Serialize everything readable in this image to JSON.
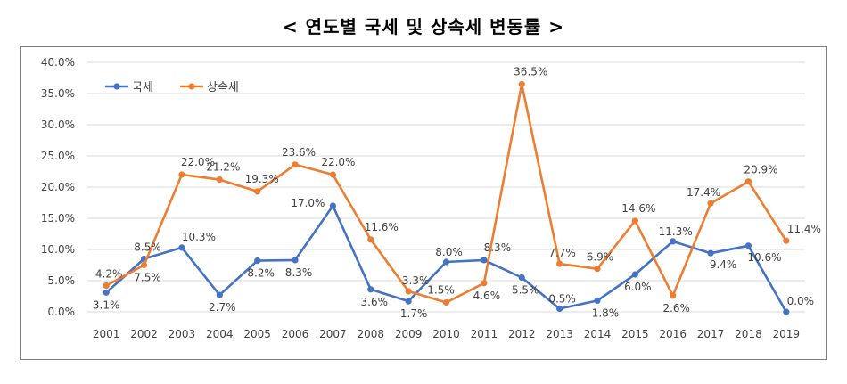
{
  "chart_data": {
    "type": "line",
    "title": "< 연도별 국세 및 상속세 변동률 >",
    "x": [
      "2001",
      "2002",
      "2003",
      "2004",
      "2005",
      "2006",
      "2007",
      "2008",
      "2009",
      "2010",
      "2011",
      "2012",
      "2013",
      "2014",
      "2015",
      "2016",
      "2017",
      "2018",
      "2019"
    ],
    "ylim": [
      0,
      40
    ],
    "yticks": [
      "0.0%",
      "5.0%",
      "10.0%",
      "15.0%",
      "20.0%",
      "25.0%",
      "30.0%",
      "35.0%",
      "40.0%"
    ],
    "legend_position": "top-left",
    "grid": true,
    "series": [
      {
        "name": "국세",
        "color": "#4472C4",
        "values": [
          3.1,
          8.5,
          10.3,
          2.7,
          8.2,
          8.3,
          17.0,
          3.6,
          1.7,
          8.0,
          8.3,
          5.5,
          0.5,
          1.8,
          6.0,
          11.3,
          9.4,
          10.6,
          0.0
        ],
        "labels": [
          "3.1%",
          "8.5%",
          "10.3%",
          "2.7%",
          "8.2%",
          "8.3%",
          "17.0%",
          "3.6%",
          "1.7%",
          "8.0%",
          "8.3%",
          "5.5%",
          "0.5%",
          "1.8%",
          "6.0%",
          "11.3%",
          "9.4%",
          "10.6%",
          "0.0%"
        ]
      },
      {
        "name": "상속세",
        "color": "#ED7D31",
        "values": [
          4.2,
          7.5,
          22.0,
          21.2,
          19.3,
          23.6,
          22.0,
          11.6,
          3.3,
          1.5,
          4.6,
          36.5,
          7.7,
          6.9,
          14.6,
          2.6,
          17.4,
          20.9,
          11.4
        ],
        "labels": [
          "4.2%",
          "7.5%",
          "22.0%",
          "21.2%",
          "19.3%",
          "23.6%",
          "22.0%",
          "11.6%",
          "3.3%",
          "1.5%",
          "4.6%",
          "36.5%",
          "7.7%",
          "6.9%",
          "14.6%",
          "2.6%",
          "17.4%",
          "20.9%",
          "11.4%"
        ]
      }
    ]
  }
}
